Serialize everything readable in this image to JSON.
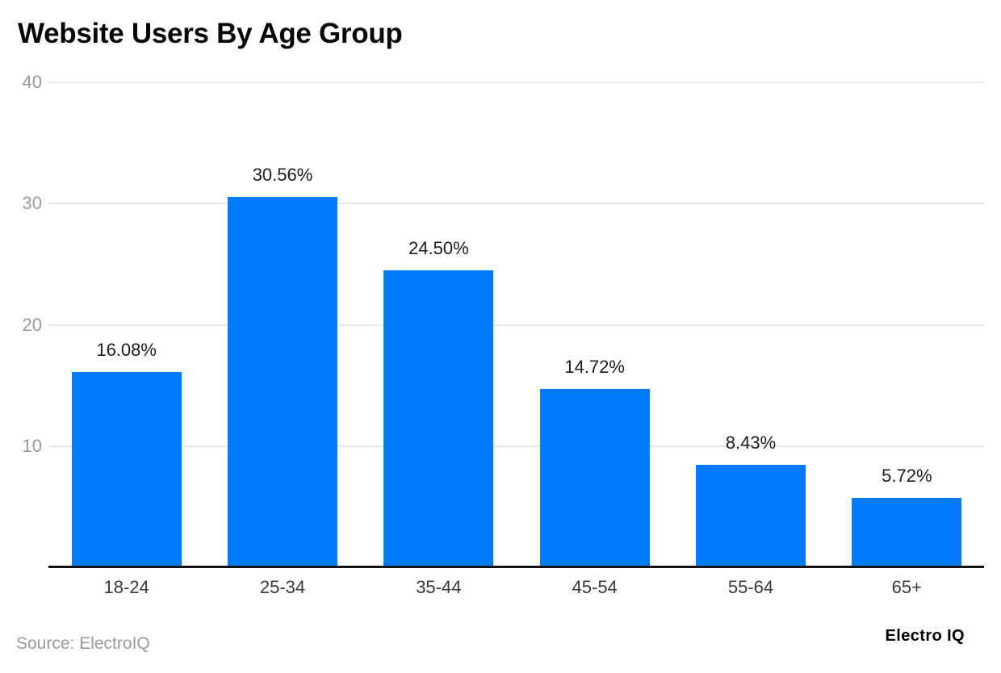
{
  "chart_data": {
    "type": "bar",
    "title": "Website Users By Age Group",
    "categories": [
      "18-24",
      "25-34",
      "35-44",
      "45-54",
      "55-64",
      "65+"
    ],
    "values": [
      16.08,
      30.56,
      24.5,
      14.72,
      8.43,
      5.72
    ],
    "value_labels": [
      "16.08%",
      "30.56%",
      "24.50%",
      "14.72%",
      "8.43%",
      "5.72%"
    ],
    "unit": "%",
    "xlabel": "",
    "ylabel": "",
    "ylim": [
      0,
      40
    ],
    "yticks": [
      10,
      20,
      30,
      40
    ],
    "grid": true,
    "legend_position": "none",
    "bar_color": "#027bfc",
    "gridline_color": "#e8e8e8",
    "axis_line_color": "#141414",
    "tick_label_color": "#9a9a9a",
    "data_label_color": "#1c1c1c"
  },
  "footer": {
    "source": "Source: ElectroIQ",
    "logo": "Electro IQ"
  }
}
